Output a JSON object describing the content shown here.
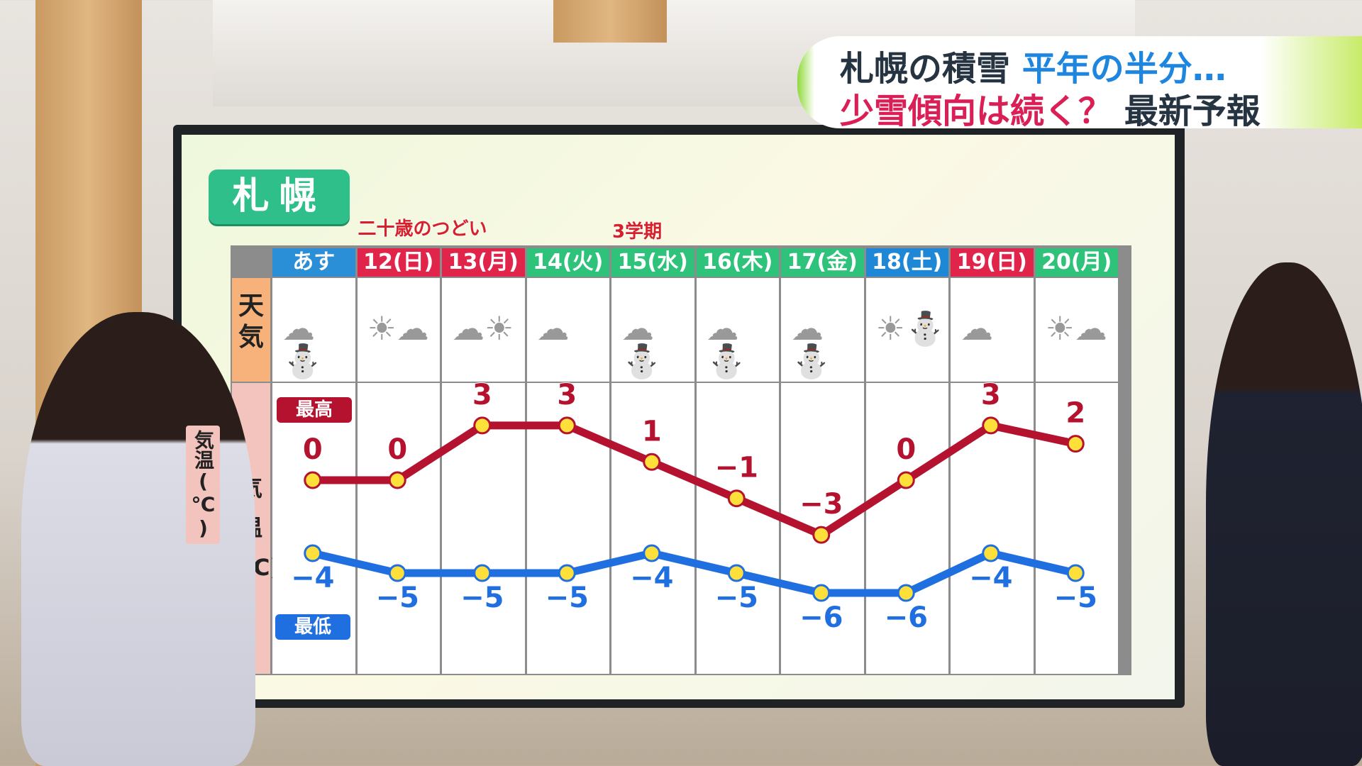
{
  "banner": {
    "line1_a": "札幌の積雪",
    "line1_b": "平年の半分…",
    "line2_a": "少雪傾向は続く？",
    "line2_b": "最新予報"
  },
  "city": "札幌",
  "events": [
    {
      "label": "二十歳のつどい",
      "day_index": 1
    },
    {
      "label": "3学期",
      "day_index": 4
    }
  ],
  "row_labels": {
    "weather": "天\n気",
    "temp": "気\n温\n(℃)",
    "high": "最高",
    "low": "最低"
  },
  "colors": {
    "high": "#b4122e",
    "low": "#1f6fe0",
    "point": "#ffe03a",
    "weekday": "#2ec27a",
    "saturday": "#1e88d6",
    "holiday": "#e0244a",
    "tomorrow": "#2a8fd6"
  },
  "chart_data": {
    "type": "line",
    "categories": [
      "あす",
      "12(日)",
      "13(月)",
      "14(火)",
      "15(水)",
      "16(木)",
      "17(金)",
      "18(土)",
      "19(日)",
      "20(月)"
    ],
    "header_kind": [
      "tomorrow",
      "holiday",
      "holiday",
      "weekday",
      "weekday",
      "weekday",
      "weekday",
      "saturday",
      "holiday",
      "weekday"
    ],
    "weather": [
      "cloud-snow",
      "sun-cloud",
      "cloud-sun",
      "cloud",
      "cloud-snow",
      "cloud-snow",
      "cloud-snow",
      "sun-snow",
      "cloud",
      "sun-cloud"
    ],
    "series": [
      {
        "name": "最高",
        "values": [
          0,
          0,
          3,
          3,
          1,
          -1,
          -3,
          0,
          3,
          2
        ]
      },
      {
        "name": "最低",
        "values": [
          -4,
          -5,
          -5,
          -5,
          -4,
          -5,
          -6,
          -6,
          -4,
          -5
        ]
      }
    ],
    "ylabel": "気温(℃)"
  }
}
